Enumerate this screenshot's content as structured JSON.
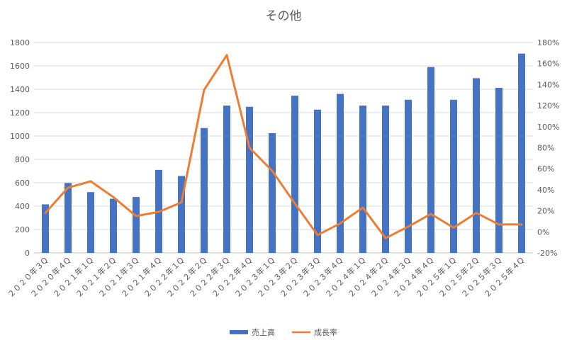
{
  "chart_data": {
    "type": "bar",
    "title": "その他",
    "categories": [
      "２０２０年３Q",
      "２０２０年４Q",
      "２０２１年１Q",
      "２０２１年２Q",
      "２０２１年３Q",
      "２０２１年４Q",
      "２０２２年１Q",
      "２０２２年２Q",
      "２０２２年３Q",
      "２０２２年４Q",
      "２０２３年１Q",
      "２０２３年２Q",
      "２０２３年３Q",
      "２０２３年４Q",
      "２０２４年１Q",
      "２０２４年２Q",
      "２０２４年３Q",
      "２０２４年４Q",
      "２０２５年１Q",
      "２０２５年２Q",
      "２０２５年３Q",
      "２０２５年４Q"
    ],
    "series": [
      {
        "name": "売上高",
        "type": "bar",
        "axis": "left",
        "color": "#4472C4",
        "values": [
          415,
          598,
          520,
          463,
          478,
          710,
          658,
          1068,
          1260,
          1250,
          1025,
          1345,
          1225,
          1360,
          1260,
          1260,
          1310,
          1590,
          1310,
          1495,
          1412,
          1705
        ]
      },
      {
        "name": "成長率",
        "type": "line",
        "axis": "right",
        "color": "#ED7D31",
        "values": [
          18,
          42,
          48,
          33,
          15,
          19,
          28,
          135,
          168,
          80,
          58,
          27,
          -3,
          8,
          23,
          -6,
          5,
          17,
          4,
          18,
          7,
          7
        ]
      }
    ],
    "ylim": [
      0,
      1800
    ],
    "y_ticks": [
      "0",
      "200",
      "400",
      "600",
      "800",
      "1000",
      "1200",
      "1400",
      "1600",
      "1800"
    ],
    "y2lim": [
      -20,
      180
    ],
    "y2_ticks": [
      "-20%",
      "0%",
      "20%",
      "40%",
      "60%",
      "80%",
      "100%",
      "120%",
      "140%",
      "160%",
      "180%"
    ],
    "grid": true,
    "legend_position": "bottom"
  }
}
